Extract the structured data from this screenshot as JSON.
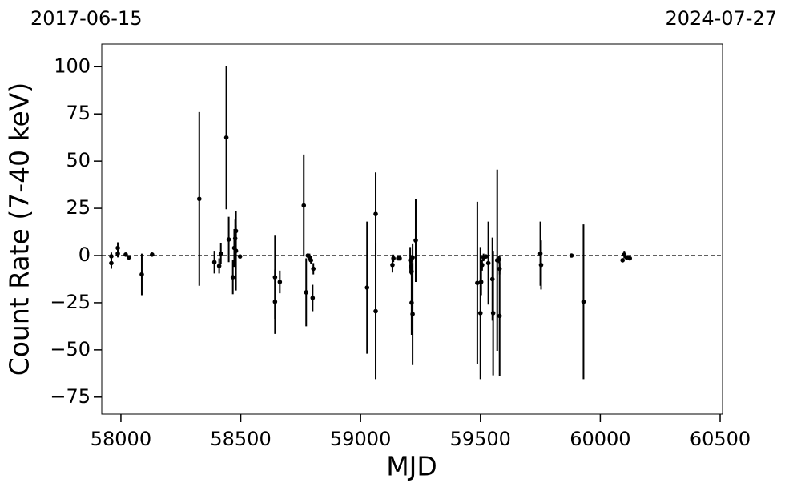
{
  "chart_data": {
    "type": "errorbar_scatter",
    "top_left_label": "2017-06-15",
    "top_right_label": "2024-07-27",
    "x_label": "MJD",
    "y_label": "Count Rate (7-40 keV)",
    "color": "#000000",
    "xlim": [
      57920,
      60510
    ],
    "ylim": [
      -84,
      112
    ],
    "xticks": [
      58000,
      58500,
      59000,
      59500,
      60000,
      60500
    ],
    "yticks": [
      {
        "value": -75,
        "label": "−75"
      },
      {
        "value": -50,
        "label": "−50"
      },
      {
        "value": -25,
        "label": "−25"
      },
      0,
      25,
      50,
      75,
      100
    ],
    "reference_line": 0,
    "x": [
      57960,
      57960,
      57987,
      57987,
      58020,
      58033,
      58087,
      58130,
      58327,
      58390,
      58410,
      58417,
      58440,
      58450,
      58467,
      58473,
      58477,
      58480,
      58480,
      58497,
      58643,
      58643,
      58663,
      58763,
      58773,
      58780,
      58787,
      58793,
      58800,
      58803,
      59027,
      59063,
      59063,
      59133,
      59137,
      59157,
      59163,
      59207,
      59210,
      59213,
      59213,
      59217,
      59217,
      59230,
      59487,
      59500,
      59503,
      59507,
      59513,
      59523,
      59533,
      59550,
      59553,
      59570,
      59577,
      59580,
      59580,
      59750,
      59753,
      59880,
      59930,
      60093,
      60100,
      60110,
      60123
    ],
    "values": [
      -4,
      -0.4,
      4,
      1,
      0.5,
      -1,
      -10,
      0.5,
      30,
      -3.5,
      -5.5,
      1,
      62.5,
      8.5,
      -11.5,
      4,
      9,
      2.5,
      13,
      -0.5,
      -11.5,
      -24.5,
      -14,
      26.5,
      -19.5,
      0,
      -1,
      -2.5,
      -22.5,
      -7,
      -17,
      22,
      -29.5,
      -5,
      -1.5,
      -1.5,
      -1.5,
      -2.5,
      -6,
      -8.5,
      -25,
      -1,
      -31,
      8,
      -14.5,
      -30.5,
      -14,
      -5,
      -1,
      -0.5,
      -4,
      -12.5,
      -30.5,
      -2.5,
      -2,
      -32,
      -7,
      1,
      -5,
      0,
      -24.5,
      -2.5,
      0.5,
      -1,
      -1.5
    ],
    "errors": [
      3,
      2,
      3,
      2,
      1,
      1,
      11,
      1,
      46,
      6,
      4,
      5.5,
      38,
      12,
      9,
      10,
      10,
      21,
      3,
      1,
      22,
      17,
      6,
      27,
      18,
      1,
      2,
      2,
      7,
      3,
      35,
      22,
      36,
      4,
      2,
      1,
      1,
      7,
      4,
      2,
      17,
      7,
      27,
      22,
      43,
      35,
      7,
      3,
      2,
      1,
      22,
      22,
      33,
      48,
      2,
      32,
      3,
      17,
      13,
      1,
      41,
      1,
      2,
      1,
      1
    ]
  }
}
